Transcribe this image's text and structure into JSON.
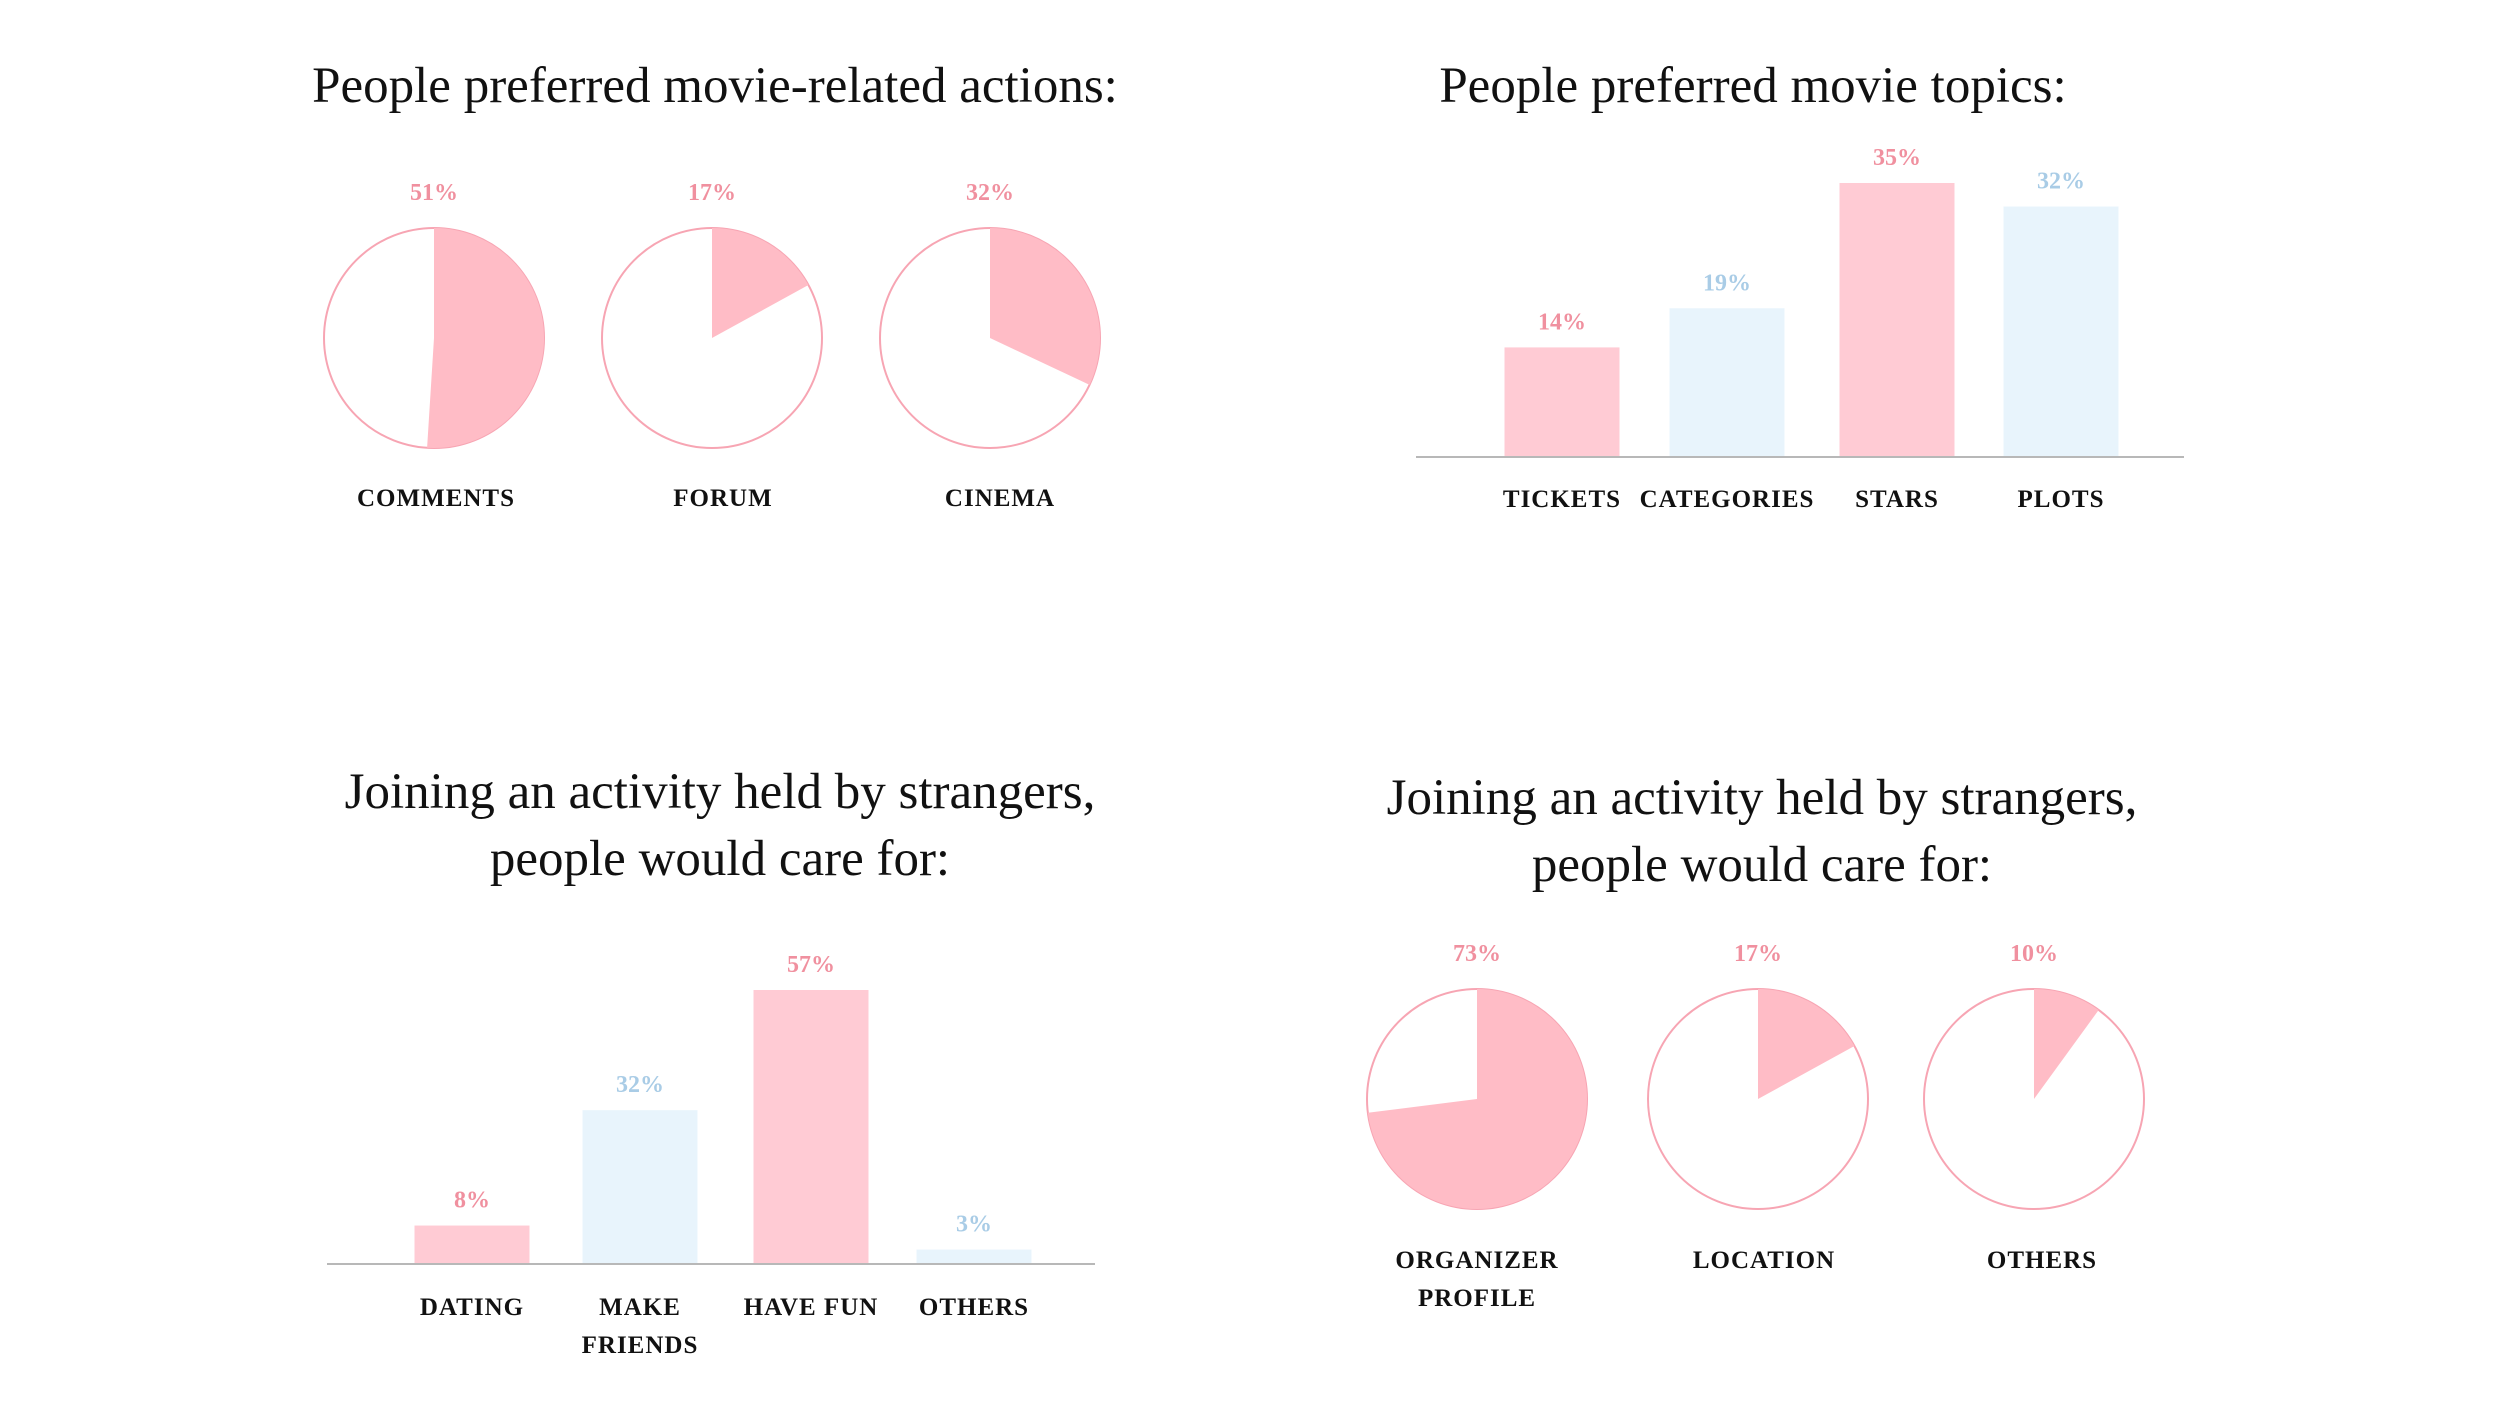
{
  "colors": {
    "pink": "#ffbcc6",
    "pink_light": "#ffcbd4",
    "blue_light": "#e8f4fc",
    "pink_text": "#f0909f",
    "blue_text": "#a9cce6",
    "pie_outline": "#f7a5b3",
    "axis": "#b8b8b8",
    "text": "#111111"
  },
  "chart_data": [
    {
      "type": "pie",
      "title": "People preferred movie-related actions:",
      "categories": [
        "COMMENTS",
        "FORUM",
        "CINEMA"
      ],
      "values": [
        51,
        17,
        32
      ],
      "value_labels": [
        "51%",
        "17%",
        "32%"
      ],
      "unit": "%",
      "note": "each category drawn as its own pie showing its share"
    },
    {
      "type": "bar",
      "title": "People preferred movie topics:",
      "categories": [
        "TICKETS",
        "CATEGORIES",
        "STARS",
        "PLOTS"
      ],
      "values": [
        14,
        19,
        35,
        32
      ],
      "value_labels": [
        "14%",
        "19%",
        "35%",
        "32%"
      ],
      "ylim": [
        0,
        35
      ],
      "xlabel": "",
      "ylabel": ""
    },
    {
      "type": "bar",
      "title_lines": [
        "Joining an activity held by strangers,",
        "people would care for:"
      ],
      "categories": [
        [
          "DATING"
        ],
        [
          "MAKE",
          "FRIENDS"
        ],
        [
          "HAVE FUN"
        ],
        [
          "OTHERS"
        ]
      ],
      "values": [
        8,
        32,
        57,
        3
      ],
      "value_labels": [
        "8%",
        "32%",
        "57%",
        "3%"
      ],
      "ylim": [
        0,
        57
      ],
      "xlabel": "",
      "ylabel": ""
    },
    {
      "type": "pie",
      "title_lines": [
        "Joining an activity held by strangers,",
        "people would care for:"
      ],
      "categories": [
        [
          "ORGANIZER",
          "PROFILE"
        ],
        [
          "LOCATION"
        ],
        [
          "OTHERS"
        ]
      ],
      "values": [
        73,
        17,
        10
      ],
      "value_labels": [
        "73%",
        "17%",
        "10%"
      ],
      "unit": "%",
      "note": "each category drawn as its own pie showing its share"
    }
  ]
}
